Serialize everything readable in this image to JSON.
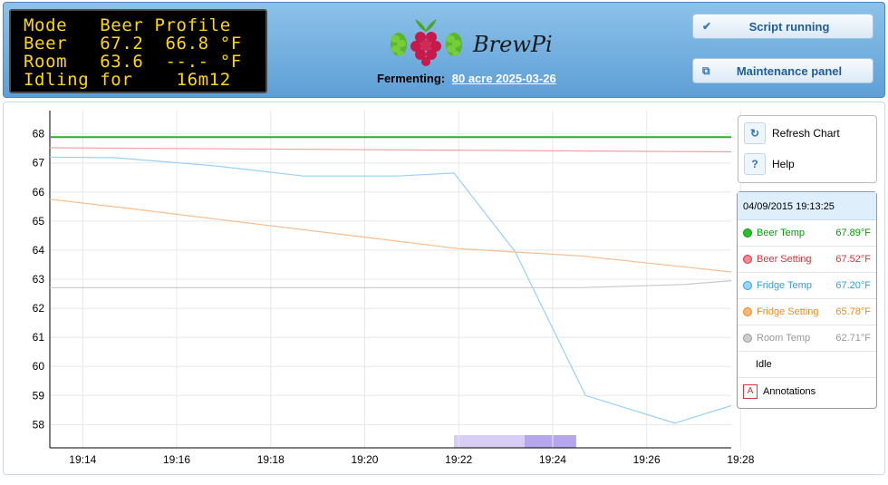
{
  "lcd": {
    "lines": [
      "Mode   Beer Profile",
      "Beer   67.2  66.8 °F",
      "Room   63.6  --.- °F",
      "Idling for    16m12"
    ]
  },
  "logo": {
    "text": "BrewPi"
  },
  "header": {
    "fermenting_label": "Fermenting:",
    "beer_name": "80 acre 2025-03-26",
    "script_button": "Script running",
    "maintenance_button": "Maintenance panel"
  },
  "controls": {
    "refresh": "Refresh Chart",
    "help": "Help",
    "help_symbol": "?"
  },
  "legend": {
    "time": "04/09/2015 19:13:25",
    "items": [
      {
        "label": "Beer Temp",
        "value": "67.89°F",
        "color": "#00a000",
        "dot": "#33bb33"
      },
      {
        "label": "Beer Setting",
        "value": "67.52°F",
        "color": "#e0303a",
        "dot": "#f08b90"
      },
      {
        "label": "Fridge Temp",
        "value": "67.20°F",
        "color": "#2f9fe0",
        "dot": "#99d6f6"
      },
      {
        "label": "Fridge Setting",
        "value": "65.78°F",
        "color": "#f08a1e",
        "dot": "#f7b77a"
      },
      {
        "label": "Room Temp",
        "value": "62.71°F",
        "color": "#999999",
        "dot": "#cccccc"
      }
    ],
    "idle": "Idle",
    "annotations_symbol": "A",
    "annotations": "Annotations"
  },
  "chart_data": {
    "type": "line",
    "xlabels": [
      "19:14",
      "19:16",
      "19:18",
      "19:20",
      "19:22",
      "19:24",
      "19:26",
      "19:28"
    ],
    "x_range_minutes": [
      0,
      14.5
    ],
    "ylim": [
      57.2,
      68.8
    ],
    "yticks": [
      58,
      59,
      60,
      61,
      62,
      63,
      64,
      65,
      66,
      67,
      68
    ],
    "grid": true,
    "series": [
      {
        "name": "Beer Temp",
        "color": "#22b622",
        "x": [
          0,
          14.5
        ],
        "y": [
          67.89,
          67.89
        ]
      },
      {
        "name": "Beer Setting",
        "color": "#f2a0a4",
        "x": [
          0,
          14.5
        ],
        "y": [
          67.52,
          67.38
        ]
      },
      {
        "name": "Fridge Temp",
        "color": "#98d2f4",
        "x": [
          0,
          1.4,
          3.5,
          5.4,
          7.4,
          8.6,
          9.9,
          11.4,
          13.3,
          14.5
        ],
        "y": [
          67.2,
          67.18,
          66.9,
          66.55,
          66.55,
          66.65,
          63.95,
          59.0,
          58.05,
          58.65
        ]
      },
      {
        "name": "Fridge Setting",
        "color": "#f9bd8c",
        "x": [
          0,
          1.6,
          8.7,
          11.3,
          14.5
        ],
        "y": [
          65.75,
          65.45,
          64.05,
          63.8,
          63.25
        ]
      },
      {
        "name": "Room Temp",
        "color": "#c8c8c8",
        "x": [
          0,
          11.3,
          13.5,
          14.5
        ],
        "y": [
          62.71,
          62.71,
          62.82,
          62.95
        ]
      }
    ],
    "idle_bands": [
      {
        "x0": 8.6,
        "x1": 10.1,
        "color": "#d8cdf5"
      },
      {
        "x0": 10.1,
        "x1": 11.2,
        "color": "#b6a6ee"
      }
    ]
  }
}
